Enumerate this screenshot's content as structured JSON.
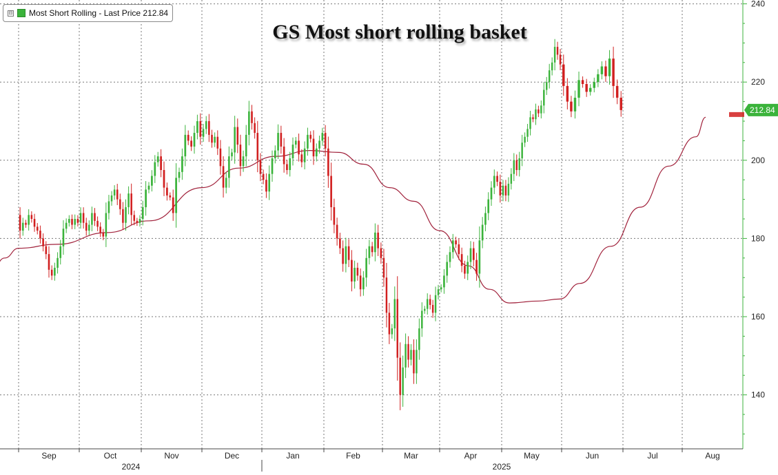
{
  "legend": {
    "toggle": "⊟",
    "text": "Most Short Rolling - Last Price 212.84",
    "color": "#3bb33b"
  },
  "chart_data": {
    "type": "candlestick",
    "title": "GS Most short rolling basket",
    "y_axis": {
      "range": [
        128,
        241
      ],
      "ticks": [
        140,
        160,
        180,
        200,
        220,
        240
      ],
      "position": "right",
      "color": "#3bb33b"
    },
    "x_axis": {
      "months": [
        {
          "label": "Sep",
          "date": "2024-09-01"
        },
        {
          "label": "Oct",
          "date": "2024-10-01"
        },
        {
          "label": "Nov",
          "date": "2024-11-01"
        },
        {
          "label": "Dec",
          "date": "2024-12-01"
        },
        {
          "label": "Jan",
          "date": "2025-01-01"
        },
        {
          "label": "Feb",
          "date": "2025-02-01"
        },
        {
          "label": "Mar",
          "date": "2025-03-01"
        },
        {
          "label": "Apr",
          "date": "2025-04-01"
        },
        {
          "label": "May",
          "date": "2025-05-01"
        },
        {
          "label": "Jun",
          "date": "2025-06-01"
        },
        {
          "label": "Jul",
          "date": "2025-07-01"
        },
        {
          "label": "Aug",
          "date": "2025-08-01"
        }
      ],
      "years": [
        {
          "label": "2024"
        },
        {
          "label": "2025"
        }
      ]
    },
    "grid": true,
    "last_price": 212.84,
    "last_price_label": "212.84",
    "up_color": "#3bb33b",
    "down_color": "#d11f1f",
    "ma_color": "#a0203a",
    "closes": [
      [
        182.0,
        184.0,
        183.5,
        186.0,
        185.0,
        183.0,
        182.0,
        180.0,
        178.0,
        176.0,
        172.0,
        170.5,
        172.5,
        175.0,
        178.0,
        182.5,
        184.0,
        185.0,
        183.5,
        185.0,
        184.0
      ],
      [
        186.5,
        184.0,
        182.0,
        183.5,
        186.5,
        184.5,
        183.0,
        181.5,
        180.5,
        186.5,
        189.5,
        191.0,
        192.5,
        190.0,
        187.5,
        184.0,
        188.0,
        191.5,
        186.0,
        184.5,
        184.0,
        185.0
      ],
      [
        188.0,
        192.5,
        193.5,
        196.0,
        199.5,
        201.0,
        197.5,
        193.0,
        191.0,
        190.5,
        186.5,
        195.5,
        197.0,
        201.0,
        206.5,
        205.0,
        203.5,
        207.0,
        210.0,
        206.0
      ],
      [
        208.0,
        210.0,
        206.5,
        204.5,
        206.0,
        203.0,
        198.5,
        193.0,
        195.5,
        201.0,
        202.0,
        208.5,
        204.0,
        198.5,
        201.0,
        206.5,
        212.5,
        209.5,
        207.0,
        200.0,
        196.5
      ],
      [
        195.0,
        192.0,
        196.5,
        200.5,
        202.5,
        207.0,
        203.5,
        199.0,
        197.5,
        200.5,
        204.0,
        205.0,
        201.5,
        199.5,
        203.0,
        206.5,
        205.5,
        201.0,
        203.0,
        205.0,
        207.0
      ],
      [
        203.0,
        196.0,
        188.0,
        183.5,
        180.0,
        177.5,
        173.5,
        178.0,
        174.5,
        169.0,
        172.5,
        170.5,
        167.0,
        170.0,
        175.0,
        178.0,
        176.5,
        181.5,
        177.5,
        175.0
      ],
      [
        170.0,
        161.0,
        155.5,
        157.0,
        164.5,
        149.5,
        140.0,
        147.0,
        153.0,
        149.0,
        151.5,
        145.5,
        151.5,
        157.0,
        161.5,
        162.0,
        164.5,
        163.0,
        161.0,
        165.5,
        167.0
      ],
      [
        167.5,
        170.5,
        174.0,
        176.5,
        179.5,
        178.5,
        176.0,
        173.0,
        171.0,
        174.0,
        177.5,
        174.5,
        171.0,
        179.5,
        183.5,
        186.5,
        190.0,
        193.0,
        196.0,
        194.5,
        191.0
      ],
      [
        193.5,
        191.0,
        194.0,
        196.5,
        200.0,
        197.5,
        200.5,
        204.5,
        206.0,
        208.0,
        211.0,
        210.5,
        213.0,
        212.0,
        214.0,
        218.0,
        220.0,
        223.0,
        225.0,
        229.0,
        227.0,
        224.5
      ],
      [
        219.0,
        215.0,
        212.5,
        216.0,
        220.5,
        219.5,
        217.5,
        218.5,
        220.0,
        222.0,
        224.0,
        221.5,
        226.0,
        219.0,
        216.0,
        212.84
      ]
    ],
    "ma_anchors": [
      {
        "date": "2024-08-01",
        "value": 172.5
      },
      {
        "date": "2024-08-15",
        "value": 175.0
      },
      {
        "date": "2024-09-01",
        "value": 177.5
      },
      {
        "date": "2024-09-20",
        "value": 178.5
      },
      {
        "date": "2024-10-15",
        "value": 181.5
      },
      {
        "date": "2024-11-05",
        "value": 184.5
      },
      {
        "date": "2024-12-01",
        "value": 193.0
      },
      {
        "date": "2024-12-20",
        "value": 198.0
      },
      {
        "date": "2025-01-08",
        "value": 201.0
      },
      {
        "date": "2025-01-25",
        "value": 202.5
      },
      {
        "date": "2025-02-08",
        "value": 202.0
      },
      {
        "date": "2025-02-20",
        "value": 199.0
      },
      {
        "date": "2025-03-05",
        "value": 193.0
      },
      {
        "date": "2025-03-18",
        "value": 189.5
      },
      {
        "date": "2025-04-01",
        "value": 182.0
      },
      {
        "date": "2025-04-15",
        "value": 173.0
      },
      {
        "date": "2025-04-25",
        "value": 167.0
      },
      {
        "date": "2025-05-05",
        "value": 163.5
      },
      {
        "date": "2025-05-20",
        "value": 164.0
      },
      {
        "date": "2025-05-31",
        "value": 164.5
      },
      {
        "date": "2025-06-10",
        "value": 168.5
      },
      {
        "date": "2025-06-25",
        "value": 178.0
      },
      {
        "date": "2025-07-10",
        "value": 188.0
      },
      {
        "date": "2025-07-25",
        "value": 198.5
      },
      {
        "date": "2025-08-08",
        "value": 206.0
      },
      {
        "date": "2025-08-13",
        "value": 211.0
      }
    ]
  }
}
